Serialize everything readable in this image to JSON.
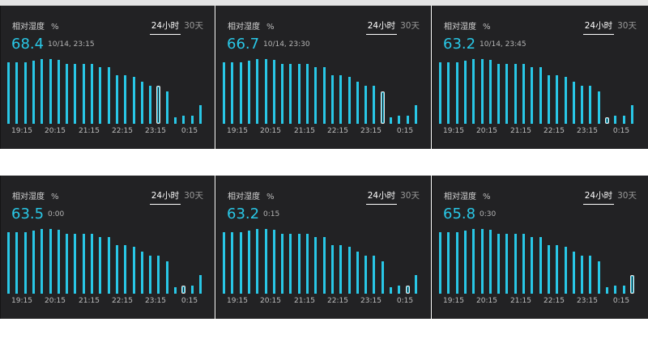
{
  "header_tabs": [
    "24小时",
    "30天"
  ],
  "x_ticks": [
    "19:15",
    "20:15",
    "21:15",
    "22:15",
    "23:15",
    "0:15"
  ],
  "accent_color": "#29c7e6",
  "panels": [
    {
      "title": "相对湿度",
      "unit": "%",
      "tab_24h": "24小时",
      "tab_30d": "30天",
      "active_tab": "24小时",
      "value": "68.4",
      "timestamp": "10/14, 23:15",
      "selected_bar": 18,
      "chart_data": {
        "type": "bar",
        "values": [
          79,
          79,
          79,
          81,
          83,
          83,
          82,
          77,
          77,
          77,
          77,
          73,
          73,
          62,
          62,
          60,
          54,
          49,
          49,
          42,
          8,
          10,
          10,
          24
        ],
        "ylim": [
          0,
          100
        ],
        "x_ticks": [
          "19:15",
          "20:15",
          "21:15",
          "22:15",
          "23:15",
          "0:15"
        ]
      }
    },
    {
      "title": "相对湿度",
      "unit": "%",
      "tab_24h": "24小时",
      "tab_30d": "30天",
      "active_tab": "24小时",
      "value": "66.7",
      "timestamp": "10/14, 23:30",
      "selected_bar": 19,
      "chart_data": {
        "type": "bar",
        "values": [
          79,
          79,
          79,
          81,
          83,
          83,
          82,
          77,
          77,
          77,
          77,
          73,
          73,
          62,
          62,
          60,
          54,
          49,
          49,
          42,
          8,
          10,
          10,
          24
        ],
        "ylim": [
          0,
          100
        ],
        "x_ticks": [
          "19:15",
          "20:15",
          "21:15",
          "22:15",
          "23:15",
          "0:15"
        ]
      }
    },
    {
      "title": "相对湿度",
      "unit": "%",
      "tab_24h": "24小时",
      "tab_30d": "30天",
      "active_tab": "24小时",
      "value": "63.2",
      "timestamp": "10/14, 23:45",
      "selected_bar": 20,
      "chart_data": {
        "type": "bar",
        "values": [
          79,
          79,
          79,
          81,
          83,
          83,
          82,
          77,
          77,
          77,
          77,
          73,
          73,
          62,
          62,
          60,
          54,
          49,
          49,
          42,
          8,
          10,
          10,
          24
        ],
        "ylim": [
          0,
          100
        ],
        "x_ticks": [
          "19:15",
          "20:15",
          "21:15",
          "22:15",
          "23:15",
          "0:15"
        ]
      }
    },
    {
      "title": "相对湿度",
      "unit": "%",
      "tab_24h": "24小时",
      "tab_30d": "30天",
      "active_tab": "24小时",
      "value": "63.5",
      "timestamp": "0:00",
      "selected_bar": 21,
      "chart_data": {
        "type": "bar",
        "values": [
          79,
          79,
          79,
          81,
          83,
          83,
          82,
          77,
          77,
          77,
          77,
          73,
          73,
          62,
          62,
          60,
          54,
          49,
          49,
          42,
          8,
          10,
          10,
          24
        ],
        "ylim": [
          0,
          100
        ],
        "x_ticks": [
          "19:15",
          "20:15",
          "21:15",
          "22:15",
          "23:15",
          "0:15"
        ]
      }
    },
    {
      "title": "相对湿度",
      "unit": "%",
      "tab_24h": "24小时",
      "tab_30d": "30天",
      "active_tab": "24小时",
      "value": "63.2",
      "timestamp": "0:15",
      "selected_bar": 22,
      "chart_data": {
        "type": "bar",
        "values": [
          79,
          79,
          79,
          81,
          83,
          83,
          82,
          77,
          77,
          77,
          77,
          73,
          73,
          62,
          62,
          60,
          54,
          49,
          49,
          42,
          8,
          10,
          10,
          24
        ],
        "ylim": [
          0,
          100
        ],
        "x_ticks": [
          "19:15",
          "20:15",
          "21:15",
          "22:15",
          "23:15",
          "0:15"
        ]
      }
    },
    {
      "title": "相对湿度",
      "unit": "%",
      "tab_24h": "24小时",
      "tab_30d": "30天",
      "active_tab": "24小时",
      "value": "65.8",
      "timestamp": "0:30",
      "selected_bar": 23,
      "chart_data": {
        "type": "bar",
        "values": [
          79,
          79,
          79,
          81,
          83,
          83,
          82,
          77,
          77,
          77,
          77,
          73,
          73,
          62,
          62,
          60,
          54,
          49,
          49,
          42,
          8,
          10,
          10,
          24
        ],
        "ylim": [
          0,
          100
        ],
        "x_ticks": [
          "19:15",
          "20:15",
          "21:15",
          "22:15",
          "23:15",
          "0:15"
        ]
      }
    }
  ]
}
